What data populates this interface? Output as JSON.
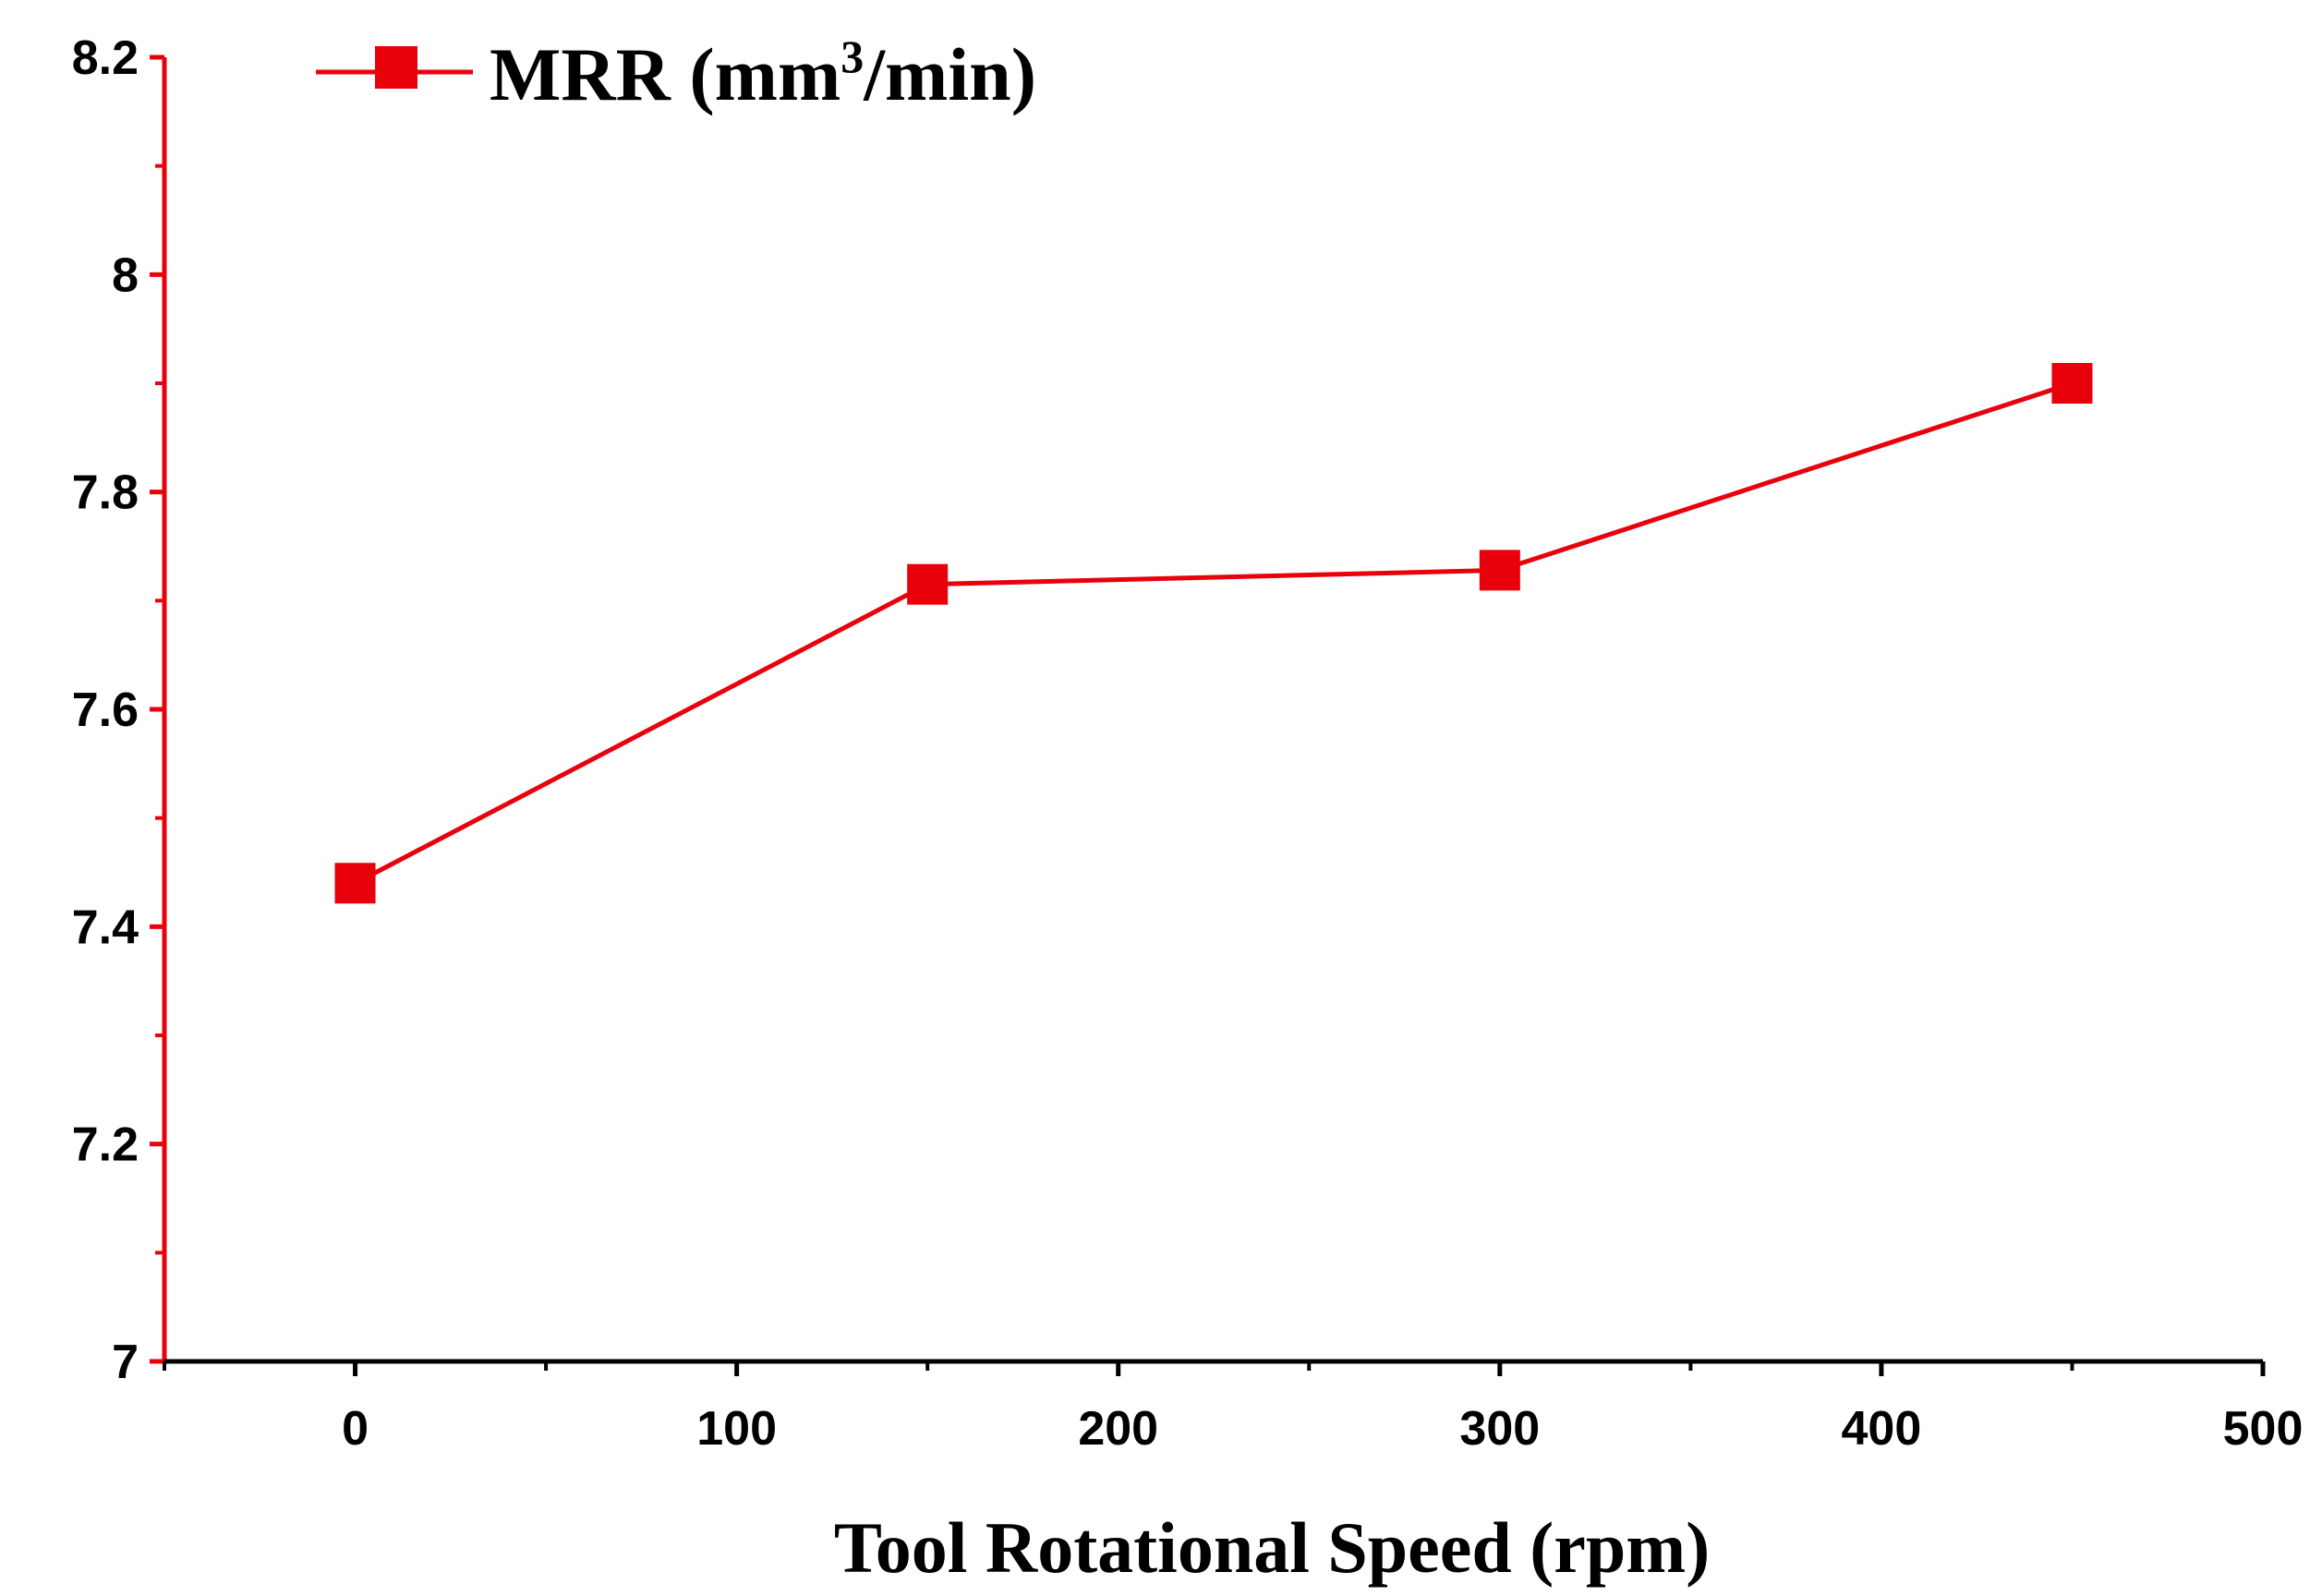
{
  "chart_data": {
    "type": "line",
    "title": "",
    "xlabel": "Tool Rotational Speed (rpm)",
    "ylabel": "",
    "xlim": [
      -50,
      500
    ],
    "ylim": [
      7.0,
      8.2
    ],
    "xticks": [
      0,
      100,
      200,
      300,
      400,
      500
    ],
    "xtick_labels": [
      "0",
      "100",
      "200",
      "300",
      "400",
      "500"
    ],
    "yticks": [
      7.0,
      7.2,
      7.4,
      7.6,
      7.8,
      8.0,
      8.2
    ],
    "ytick_labels": [
      "7",
      "7.2",
      "7.4",
      "7.6",
      "7.8",
      "8",
      "8.2"
    ],
    "grid": false,
    "legend_position": "top-left",
    "series": [
      {
        "name": "MRR (mm³/min)",
        "marker": "square",
        "color": "#e8000b",
        "x": [
          0,
          150,
          300,
          450
        ],
        "y": [
          7.44,
          7.715,
          7.728,
          7.9
        ]
      }
    ]
  },
  "legend": {
    "label_main": "MRR (mm",
    "label_sup": "3",
    "label_tail": "/min)"
  },
  "colors": {
    "series": "#e8000b",
    "y_axis": "#e8000b",
    "x_axis": "#000000"
  }
}
